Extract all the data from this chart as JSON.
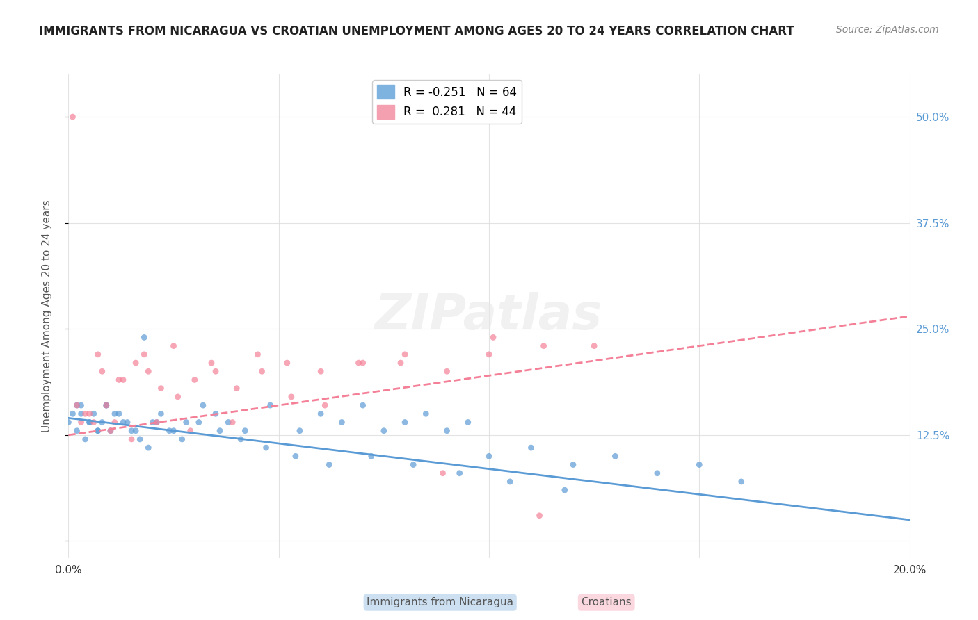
{
  "title": "IMMIGRANTS FROM NICARAGUA VS CROATIAN UNEMPLOYMENT AMONG AGES 20 TO 24 YEARS CORRELATION CHART",
  "source": "Source: ZipAtlas.com",
  "xlabel_bottom": "",
  "ylabel": "Unemployment Among Ages 20 to 24 years",
  "xlim": [
    0.0,
    0.2
  ],
  "ylim": [
    -0.02,
    0.55
  ],
  "x_ticks": [
    0.0,
    0.05,
    0.1,
    0.15,
    0.2
  ],
  "x_tick_labels": [
    "0.0%",
    "",
    "",
    "",
    "20.0%"
  ],
  "y_ticks_right": [
    0.0,
    0.125,
    0.25,
    0.375,
    0.5
  ],
  "y_tick_labels_right": [
    "",
    "12.5%",
    "25.0%",
    "37.5%",
    "50.0%"
  ],
  "legend_entries": [
    {
      "label": "R = -0.251   N = 64",
      "color": "#7eb3e0"
    },
    {
      "label": "R =  0.281   N = 44",
      "color": "#f4a0b0"
    }
  ],
  "blue_color": "#5b9bd5",
  "pink_color": "#f48098",
  "watermark": "ZIPatlas",
  "blue_scatter_x": [
    0.0,
    0.001,
    0.002,
    0.003,
    0.004,
    0.005,
    0.006,
    0.007,
    0.008,
    0.009,
    0.01,
    0.012,
    0.014,
    0.016,
    0.018,
    0.02,
    0.022,
    0.025,
    0.028,
    0.032,
    0.035,
    0.038,
    0.042,
    0.048,
    0.055,
    0.06,
    0.065,
    0.07,
    0.075,
    0.08,
    0.085,
    0.09,
    0.095,
    0.1,
    0.11,
    0.12,
    0.13,
    0.14,
    0.15,
    0.16,
    0.002,
    0.003,
    0.005,
    0.007,
    0.009,
    0.011,
    0.013,
    0.015,
    0.017,
    0.019,
    0.021,
    0.024,
    0.027,
    0.031,
    0.036,
    0.041,
    0.047,
    0.054,
    0.062,
    0.072,
    0.082,
    0.093,
    0.105,
    0.118
  ],
  "blue_scatter_y": [
    0.14,
    0.15,
    0.13,
    0.16,
    0.12,
    0.14,
    0.15,
    0.13,
    0.14,
    0.16,
    0.13,
    0.15,
    0.14,
    0.13,
    0.24,
    0.14,
    0.15,
    0.13,
    0.14,
    0.16,
    0.15,
    0.14,
    0.13,
    0.16,
    0.13,
    0.15,
    0.14,
    0.16,
    0.13,
    0.14,
    0.15,
    0.13,
    0.14,
    0.1,
    0.11,
    0.09,
    0.1,
    0.08,
    0.09,
    0.07,
    0.16,
    0.15,
    0.14,
    0.13,
    0.16,
    0.15,
    0.14,
    0.13,
    0.12,
    0.11,
    0.14,
    0.13,
    0.12,
    0.14,
    0.13,
    0.12,
    0.11,
    0.1,
    0.09,
    0.1,
    0.09,
    0.08,
    0.07,
    0.06
  ],
  "pink_scatter_x": [
    0.001,
    0.003,
    0.005,
    0.007,
    0.009,
    0.011,
    0.013,
    0.016,
    0.019,
    0.022,
    0.026,
    0.03,
    0.035,
    0.04,
    0.046,
    0.053,
    0.061,
    0.07,
    0.08,
    0.09,
    0.101,
    0.113,
    0.002,
    0.004,
    0.006,
    0.008,
    0.01,
    0.012,
    0.015,
    0.018,
    0.021,
    0.025,
    0.029,
    0.034,
    0.039,
    0.045,
    0.052,
    0.06,
    0.069,
    0.079,
    0.089,
    0.1,
    0.112,
    0.125
  ],
  "pink_scatter_y": [
    0.5,
    0.14,
    0.15,
    0.22,
    0.16,
    0.14,
    0.19,
    0.21,
    0.2,
    0.18,
    0.17,
    0.19,
    0.2,
    0.18,
    0.2,
    0.17,
    0.16,
    0.21,
    0.22,
    0.2,
    0.24,
    0.23,
    0.16,
    0.15,
    0.14,
    0.2,
    0.13,
    0.19,
    0.12,
    0.22,
    0.14,
    0.23,
    0.13,
    0.21,
    0.14,
    0.22,
    0.21,
    0.2,
    0.21,
    0.21,
    0.08,
    0.22,
    0.03,
    0.23
  ],
  "blue_line_x": [
    0.0,
    0.2
  ],
  "blue_line_y": [
    0.145,
    0.025
  ],
  "pink_line_x": [
    0.0,
    0.2
  ],
  "pink_line_y": [
    0.125,
    0.265
  ],
  "grid_color": "#dddddd",
  "bg_color": "#ffffff",
  "scatter_alpha": 0.7,
  "scatter_size": 40
}
